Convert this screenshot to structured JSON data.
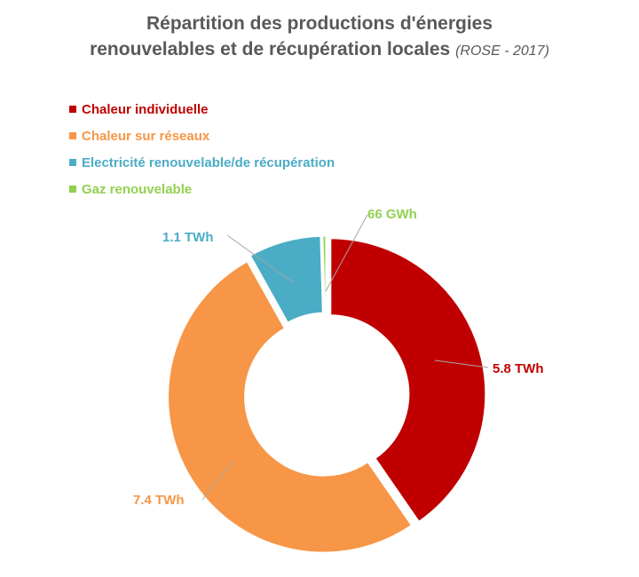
{
  "chart_data": {
    "type": "pie",
    "subtype": "donut",
    "title_line1": "Répartition des productions d'énergies",
    "title_line2": "renouvelables et de récupération locales",
    "subtitle": "(ROSE - 2017)",
    "legend_position": "top-left",
    "categories": [
      "Chaleur individuelle",
      "Chaleur sur réseaux",
      "Electricité renouvelable/de récupération",
      "Gaz renouvelable"
    ],
    "values": [
      5.8,
      7.4,
      1.1,
      0.066
    ],
    "unit": "TWh",
    "data_labels": [
      "5.8 TWh",
      "7.4 TWh",
      "1.1 TWh",
      "66 GWh"
    ],
    "colors": [
      "#C00000",
      "#F79646",
      "#4BACC6",
      "#92D050"
    ]
  }
}
